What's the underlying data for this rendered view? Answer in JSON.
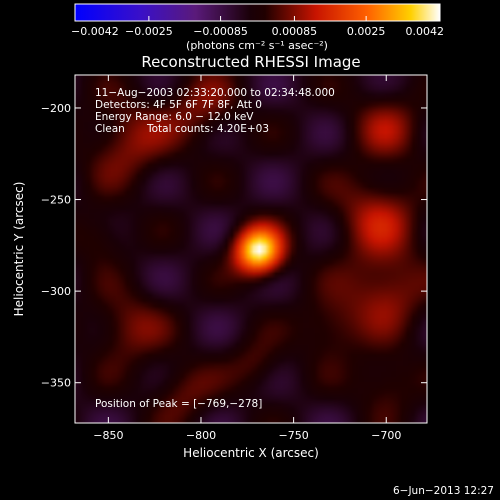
{
  "chart_data": {
    "type": "heatmap",
    "title": "Reconstructed RHESSI Image",
    "xlabel": "Heliocentric X (arcsec)",
    "ylabel": "Heliocentric Y (arcsec)",
    "xlim": [
      -868,
      -678
    ],
    "ylim": [
      -372,
      -182
    ],
    "x_ticks": [
      -850,
      -800,
      -750,
      -700
    ],
    "y_ticks": [
      -200,
      -250,
      -300,
      -350
    ],
    "x_tick_labels": [
      "−850",
      "−800",
      "−750",
      "−700"
    ],
    "y_tick_labels": [
      "−200",
      "−250",
      "−300",
      "−350"
    ],
    "colorbar": {
      "range": [
        -0.0042,
        0.0042
      ],
      "ticks": [
        -0.0042,
        -0.0025,
        -0.00085,
        0.00085,
        0.0025,
        0.0042
      ],
      "tick_labels": [
        "−0.0042",
        "−0.0025",
        "−0.00085",
        "0.00085",
        "0.0025",
        "0.0042"
      ],
      "label": "(photons cm⁻² s⁻¹ asec⁻²)",
      "colormap": "blue-purple-black-red-yellow-white"
    },
    "annotations": {
      "time_range": "11−Aug−2003 02:33:20.000 to 02:34:48.000",
      "detectors": "Detectors: 4F 5F 6F 7F 8F, Att 0",
      "energy_range": "Energy Range: 6.0 − 12.0 keV",
      "clean_label": "Clean",
      "total_counts": "Total counts: 4.20E+03",
      "peak_position": "Position of Peak = [−769,−278]"
    },
    "peak": {
      "x": -769,
      "y": -278,
      "value": 0.0042
    },
    "sources": [
      {
        "x": -769,
        "y": -278,
        "sigma": 9,
        "amp": 0.0044
      },
      {
        "x": -840,
        "y": -218,
        "sigma": 16,
        "amp": 0.0012
      },
      {
        "x": -800,
        "y": -200,
        "sigma": 14,
        "amp": 0.001
      },
      {
        "x": -700,
        "y": -210,
        "sigma": 14,
        "amp": 0.0011
      },
      {
        "x": -705,
        "y": -260,
        "sigma": 16,
        "amp": 0.0014
      },
      {
        "x": -700,
        "y": -300,
        "sigma": 15,
        "amp": 0.0013
      },
      {
        "x": -730,
        "y": -320,
        "sigma": 12,
        "amp": 0.001
      },
      {
        "x": -840,
        "y": -320,
        "sigma": 14,
        "amp": 0.0011
      },
      {
        "x": -810,
        "y": -355,
        "sigma": 12,
        "amp": 0.0009
      },
      {
        "x": -770,
        "y": -340,
        "sigma": 10,
        "amp": 0.0008
      },
      {
        "x": -700,
        "y": -350,
        "sigma": 12,
        "amp": 0.0009
      },
      {
        "x": -855,
        "y": -270,
        "sigma": 10,
        "amp": 0.0008
      }
    ]
  },
  "footer": {
    "date": "6−Jun−2013 12:27"
  }
}
